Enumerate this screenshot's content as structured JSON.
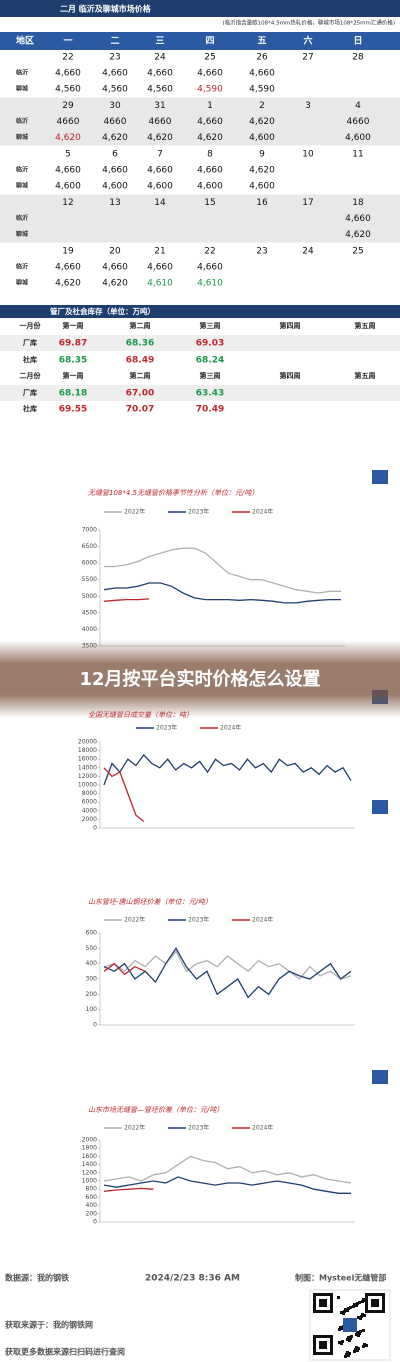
{
  "table1": {
    "title": "二月 临沂及聊城市场价格",
    "note": "(临沂指含量碳108*4.5mm热轧价格，聊城市场108*25mm汇通价格)",
    "headers": [
      "地区",
      "一",
      "二",
      "三",
      "四",
      "五",
      "六",
      "日"
    ],
    "regions": [
      "临沂",
      "聊城"
    ],
    "weeks": [
      {
        "dates": [
          "22",
          "23",
          "24",
          "25",
          "26",
          "27",
          "28"
        ],
        "linyi": [
          "4,660",
          "4,660",
          "4,660",
          "4,660",
          "4,660",
          null,
          null
        ],
        "liaocheng": [
          "4,560",
          "4,560",
          "4,560",
          {
            "text": "4,590",
            "color": "red"
          },
          "4,590",
          null,
          null
        ]
      },
      {
        "dates": [
          "29",
          "30",
          "31",
          "1",
          "2",
          "3",
          "4"
        ],
        "linyi": [
          "4660",
          "4660",
          "4660",
          "4,660",
          "4,620",
          null,
          "4660"
        ],
        "liaocheng": [
          {
            "text": "4,620",
            "color": "red"
          },
          "4,620",
          "4,620",
          "4,620",
          "4,600",
          null,
          "4,600"
        ]
      },
      {
        "dates": [
          "5",
          "6",
          "7",
          "8",
          "9",
          "10",
          "11"
        ],
        "linyi": [
          "4,660",
          "4,660",
          "4,660",
          "4,660",
          "4,620",
          null,
          null
        ],
        "liaocheng": [
          "4,600",
          "4,600",
          "4,600",
          "4,600",
          "4,600",
          null,
          null
        ]
      },
      {
        "dates": [
          "12",
          "13",
          "14",
          "15",
          "16",
          "17",
          "18"
        ],
        "linyi": [
          null,
          null,
          null,
          null,
          null,
          null,
          "4,660"
        ],
        "liaocheng": [
          null,
          null,
          null,
          null,
          null,
          null,
          "4,620"
        ]
      },
      {
        "dates": [
          "19",
          "20",
          "21",
          "22",
          "23",
          "24",
          "25"
        ],
        "linyi": [
          "4,660",
          "4,660",
          "4,660",
          "4,660",
          null,
          null,
          null
        ],
        "liaocheng": [
          "4,620",
          "4,620",
          {
            "text": "4,610",
            "color": "green"
          },
          {
            "text": "4,610",
            "color": "green"
          },
          null,
          null,
          null
        ]
      }
    ]
  },
  "table2": {
    "title": "管厂及社会库存（单位：万吨）",
    "rows": [
      [
        {
          "text": "一月份"
        },
        {
          "text": "第一周"
        },
        {
          "text": "第二周"
        },
        {
          "text": "第三周"
        },
        {
          "text": "第四周"
        },
        {
          "text": "第五周"
        }
      ],
      [
        {
          "text": "厂库"
        },
        {
          "text": "69.87",
          "color": "red"
        },
        {
          "text": "68.36",
          "color": "green"
        },
        {
          "text": "69.03",
          "color": "red"
        }
      ],
      [
        {
          "text": "社库"
        },
        {
          "text": "68.35",
          "color": "green"
        },
        {
          "text": "68.49",
          "color": "red"
        },
        {
          "text": "68.24",
          "color": "green"
        }
      ],
      [
        {
          "text": "二月份"
        },
        {
          "text": "第一周"
        },
        {
          "text": "第二周"
        },
        {
          "text": "第三周"
        },
        {
          "text": "第四周"
        },
        {
          "text": "第五周"
        }
      ],
      [
        {
          "text": "厂库"
        },
        {
          "text": "68.18",
          "color": "green"
        },
        {
          "text": "67.00",
          "color": "red"
        },
        {
          "text": "63.43",
          "color": "green"
        }
      ],
      [
        {
          "text": "社库"
        },
        {
          "text": "69.55",
          "color": "red"
        },
        {
          "text": "70.07",
          "color": "red"
        },
        {
          "text": "70.49",
          "color": "red"
        }
      ]
    ]
  },
  "charts": [
    {
      "type": "line",
      "title": "无缝管108*4.5无缝管价格季节性分析（单位：元/吨）",
      "ylim": [
        3500,
        7000
      ],
      "yticks": [
        3500,
        4000,
        4500,
        5000,
        5500,
        6000,
        6500,
        7000
      ],
      "series": [
        {
          "name": "2022年",
          "color": "#b0b0b0",
          "values": [
            5900,
            5900,
            5950,
            6050,
            6200,
            6300,
            6400,
            6450,
            6450,
            6300,
            6000,
            5700,
            5600,
            5500,
            5500,
            5400,
            5300,
            5200,
            5150,
            5100,
            5150,
            5150
          ]
        },
        {
          "name": "2023年",
          "color": "#1f3e6e",
          "values": [
            5200,
            5250,
            5250,
            5300,
            5400,
            5400,
            5300,
            5100,
            4950,
            4900,
            4900,
            4900,
            4880,
            4900,
            4880,
            4850,
            4800,
            4800,
            4850,
            4880,
            4900,
            4900
          ]
        },
        {
          "name": "2024年",
          "color": "#c0262d",
          "values": [
            4850,
            4880,
            4900,
            4900,
            4920,
            null,
            null,
            null,
            null,
            null,
            null,
            null,
            null,
            null,
            null,
            null,
            null,
            null,
            null,
            null,
            null,
            null
          ]
        }
      ]
    },
    {
      "type": "line",
      "title": "全国无缝管日成交量（单位：吨）",
      "ylim": [
        0,
        20000
      ],
      "yticks": [
        0,
        2000,
        4000,
        6000,
        8000,
        10000,
        12000,
        14000,
        16000,
        18000,
        20000
      ],
      "series": [
        {
          "name": "2023年",
          "color": "#1f3e6e",
          "values": [
            10000,
            15000,
            13000,
            16000,
            14500,
            17000,
            15000,
            14000,
            16000,
            13500,
            15000,
            14000,
            15500,
            13000,
            16000,
            14500,
            15000,
            13500,
            16000,
            14000,
            15000,
            13000,
            16000,
            14500,
            15000,
            13000,
            14000,
            12500,
            14500,
            13000,
            14000,
            11000
          ]
        },
        {
          "name": "2024年",
          "color": "#c0262d",
          "values": [
            14000,
            12000,
            13000,
            8000,
            3000,
            1500,
            null,
            null,
            null,
            null,
            null,
            null,
            null,
            null,
            null,
            null,
            null,
            null,
            null,
            null,
            null,
            null,
            null,
            null,
            null,
            null,
            null,
            null,
            null,
            null,
            null,
            null
          ]
        }
      ]
    },
    {
      "type": "line",
      "title": "山东管坯-唐山钢坯价差（单位：元/吨）",
      "ylim": [
        0,
        600
      ],
      "yticks": [
        0,
        100,
        200,
        300,
        400,
        500,
        600
      ],
      "series": [
        {
          "name": "2022年",
          "color": "#b0b0b0",
          "values": [
            380,
            400,
            350,
            420,
            380,
            450,
            400,
            480,
            350,
            400,
            420,
            380,
            450,
            400,
            350,
            420,
            380,
            400,
            350,
            300,
            380,
            320,
            350,
            300,
            320
          ]
        },
        {
          "name": "2023年",
          "color": "#1f3e6e",
          "values": [
            380,
            350,
            400,
            300,
            350,
            280,
            400,
            500,
            380,
            300,
            350,
            200,
            250,
            300,
            180,
            250,
            200,
            300,
            350,
            320,
            300,
            350,
            400,
            300,
            350
          ]
        },
        {
          "name": "2024年",
          "color": "#c0262d",
          "values": [
            350,
            400,
            330,
            380,
            350,
            null,
            null,
            null,
            null,
            null,
            null,
            null,
            null,
            null,
            null,
            null,
            null,
            null,
            null,
            null,
            null,
            null,
            null,
            null,
            null
          ]
        }
      ]
    },
    {
      "type": "line",
      "title": "山东市场无缝管—管坯价差（单位：元/吨）",
      "ylim": [
        0,
        2000
      ],
      "yticks": [
        0,
        200,
        400,
        600,
        800,
        1000,
        1200,
        1400,
        1600,
        1800,
        2000
      ],
      "series": [
        {
          "name": "2022年",
          "color": "#b0b0b0",
          "values": [
            1000,
            1050,
            1100,
            1000,
            1150,
            1200,
            1400,
            1600,
            1500,
            1450,
            1300,
            1350,
            1200,
            1250,
            1150,
            1200,
            1100,
            1150,
            1050,
            1000,
            950
          ]
        },
        {
          "name": "2023年",
          "color": "#1f3e6e",
          "values": [
            900,
            850,
            900,
            950,
            1000,
            950,
            1100,
            1000,
            950,
            900,
            950,
            950,
            900,
            950,
            1000,
            950,
            900,
            800,
            750,
            700,
            700
          ]
        },
        {
          "name": "2024年",
          "color": "#c0262d",
          "values": [
            750,
            780,
            800,
            820,
            800,
            null,
            null,
            null,
            null,
            null,
            null,
            null,
            null,
            null,
            null,
            null,
            null,
            null,
            null,
            null,
            null
          ]
        }
      ]
    }
  ],
  "banner": "12月按平台实时价格怎么设置",
  "footer": {
    "source": "数据源：我的钢铁",
    "time": "2024/2/23 8:36 AM",
    "maker": "制图：Mysteel无缝管部",
    "origin": "获取来源于：我的钢铁网",
    "more": "获取更多数据来源扫扫码进行查阅"
  }
}
